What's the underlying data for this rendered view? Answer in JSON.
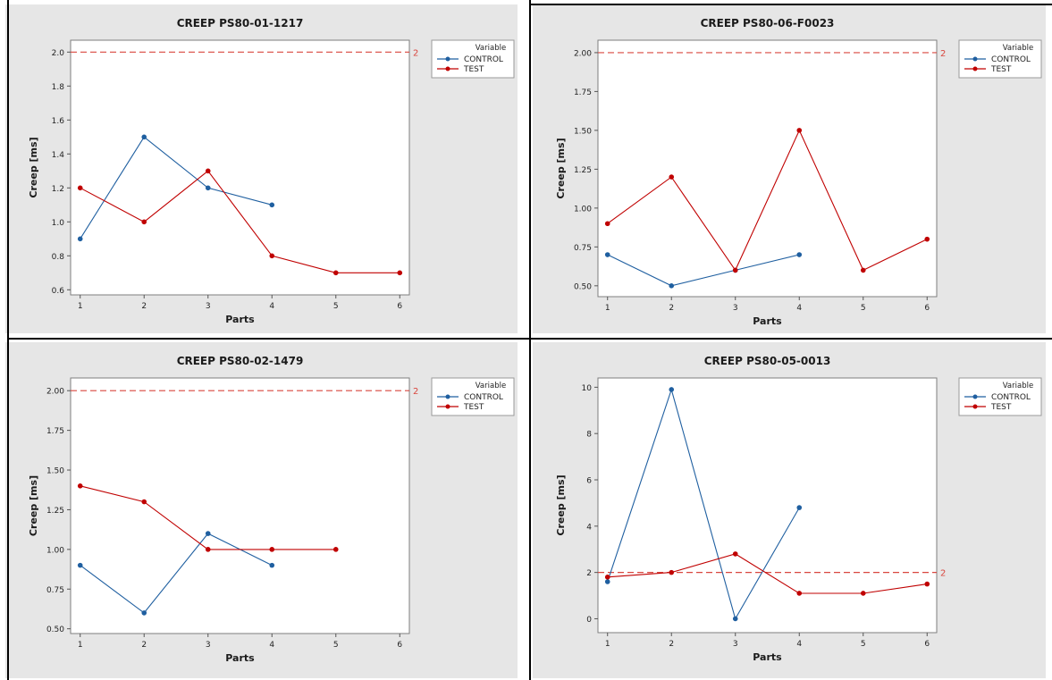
{
  "colors": {
    "control": "#1f5fa0",
    "test": "#c00000",
    "reference_line": "#d9473f",
    "panel_bg": "#e6e6e6",
    "plot_bg": "#ffffff"
  },
  "chart_data": [
    {
      "id": "chart-tl",
      "type": "line",
      "title": "CREEP PS80-01-1217",
      "xlabel": "Parts",
      "ylabel": "Creep [ms]",
      "x": [
        1,
        2,
        3,
        4,
        5,
        6
      ],
      "xticks": [
        "1",
        "2",
        "3",
        "4",
        "5",
        "6"
      ],
      "ylim": [
        0.57,
        2.07
      ],
      "yticks": [
        0.6,
        0.8,
        1.0,
        1.2,
        1.4,
        1.6,
        1.8,
        2.0
      ],
      "ytick_labels": [
        "0.6",
        "0.8",
        "1.0",
        "1.2",
        "1.4",
        "1.6",
        "1.8",
        "2.0"
      ],
      "reference_line": {
        "value": 2,
        "label": "2"
      },
      "legend": {
        "title": "Variable",
        "placement": "top-right-outside"
      },
      "series": [
        {
          "name": "CONTROL",
          "color": "#1f5fa0",
          "x": [
            1,
            2,
            3,
            4
          ],
          "values": [
            0.9,
            1.5,
            1.2,
            1.1
          ]
        },
        {
          "name": "TEST",
          "color": "#c00000",
          "x": [
            1,
            2,
            3,
            4,
            5,
            6
          ],
          "values": [
            1.2,
            1.0,
            1.3,
            0.8,
            0.7,
            0.7
          ]
        }
      ]
    },
    {
      "id": "chart-tr",
      "type": "line",
      "title": "CREEP PS80-06-F0023",
      "xlabel": "Parts",
      "ylabel": "Creep [ms]",
      "x": [
        1,
        2,
        3,
        4,
        5,
        6
      ],
      "xticks": [
        "1",
        "2",
        "3",
        "4",
        "5",
        "6"
      ],
      "ylim": [
        0.43,
        2.08
      ],
      "yticks": [
        0.5,
        0.75,
        1.0,
        1.25,
        1.5,
        1.75,
        2.0
      ],
      "ytick_labels": [
        "0.50",
        "0.75",
        "1.00",
        "1.25",
        "1.50",
        "1.75",
        "2.00"
      ],
      "reference_line": {
        "value": 2,
        "label": "2"
      },
      "legend": {
        "title": "Variable",
        "placement": "top-right-outside"
      },
      "series": [
        {
          "name": "CONTROL",
          "color": "#1f5fa0",
          "x": [
            1,
            2,
            3,
            4
          ],
          "values": [
            0.7,
            0.5,
            0.6,
            0.7
          ]
        },
        {
          "name": "TEST",
          "color": "#c00000",
          "x": [
            1,
            2,
            3,
            4,
            5,
            6
          ],
          "values": [
            0.9,
            1.2,
            0.6,
            1.5,
            0.6,
            0.8
          ]
        }
      ]
    },
    {
      "id": "chart-bl",
      "type": "line",
      "title": "CREEP PS80-02-1479",
      "xlabel": "Parts",
      "ylabel": "Creep [ms]",
      "x": [
        1,
        2,
        3,
        4,
        5,
        6
      ],
      "xticks": [
        "1",
        "2",
        "3",
        "4",
        "5",
        "6"
      ],
      "ylim": [
        0.47,
        2.08
      ],
      "yticks": [
        0.5,
        0.75,
        1.0,
        1.25,
        1.5,
        1.75,
        2.0
      ],
      "ytick_labels": [
        "0.50",
        "0.75",
        "1.00",
        "1.25",
        "1.50",
        "1.75",
        "2.00"
      ],
      "reference_line": {
        "value": 2,
        "label": "2"
      },
      "legend": {
        "title": "Variable",
        "placement": "top-right-outside"
      },
      "series": [
        {
          "name": "CONTROL",
          "color": "#1f5fa0",
          "x": [
            1,
            2,
            3,
            4
          ],
          "values": [
            0.9,
            0.6,
            1.1,
            0.9
          ]
        },
        {
          "name": "TEST",
          "color": "#c00000",
          "x": [
            1,
            2,
            3,
            4,
            5
          ],
          "values": [
            1.4,
            1.3,
            1.0,
            1.0,
            1.0
          ]
        }
      ]
    },
    {
      "id": "chart-br",
      "type": "line",
      "title": "CREEP PS80-05-0013",
      "xlabel": "Parts",
      "ylabel": "Creep [ms]",
      "x": [
        1,
        2,
        3,
        4,
        5,
        6
      ],
      "xticks": [
        "1",
        "2",
        "3",
        "4",
        "5",
        "6"
      ],
      "ylim": [
        -0.6,
        10.4
      ],
      "yticks": [
        0,
        2,
        4,
        6,
        8,
        10
      ],
      "ytick_labels": [
        "0",
        "2",
        "4",
        "6",
        "8",
        "10"
      ],
      "reference_line": {
        "value": 2,
        "label": "2"
      },
      "legend": {
        "title": "Variable",
        "placement": "top-right-outside"
      },
      "series": [
        {
          "name": "CONTROL",
          "color": "#1f5fa0",
          "x": [
            1,
            2,
            3,
            4
          ],
          "values": [
            1.6,
            9.9,
            0.0,
            4.8
          ]
        },
        {
          "name": "TEST",
          "color": "#c00000",
          "x": [
            1,
            2,
            3,
            4,
            5,
            6
          ],
          "values": [
            1.8,
            2.0,
            2.8,
            1.1,
            1.1,
            1.5
          ]
        }
      ]
    }
  ]
}
